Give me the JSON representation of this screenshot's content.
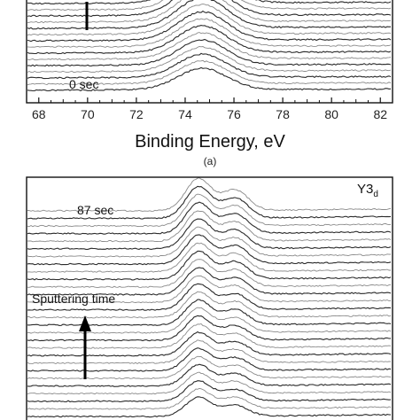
{
  "chart_data": [
    {
      "type": "line",
      "panel_label": "(a)",
      "xlabel": "Binding Energy, eV",
      "ylabel": "",
      "xlim": [
        67.5,
        82.5
      ],
      "x_ticks": [
        68,
        70,
        72,
        74,
        76,
        78,
        80,
        82
      ],
      "x_tick_labels": [
        "68",
        "70",
        "72",
        "74",
        "76",
        "78",
        "80",
        "82"
      ],
      "grid": false,
      "series_count": 16,
      "peak_center": 74.7,
      "peak_width": 1.0,
      "bottom_annotation": "0 sec",
      "series": [
        {
          "time_index": 0,
          "peak_height": 1.0
        },
        {
          "time_index": 1,
          "peak_height": 1.04
        },
        {
          "time_index": 2,
          "peak_height": 1.08
        },
        {
          "time_index": 3,
          "peak_height": 1.12
        },
        {
          "time_index": 4,
          "peak_height": 1.16
        },
        {
          "time_index": 5,
          "peak_height": 1.2
        },
        {
          "time_index": 6,
          "peak_height": 1.24
        },
        {
          "time_index": 7,
          "peak_height": 1.28
        },
        {
          "time_index": 8,
          "peak_height": 1.32
        },
        {
          "time_index": 9,
          "peak_height": 1.36
        },
        {
          "time_index": 10,
          "peak_height": 1.4
        },
        {
          "time_index": 11,
          "peak_height": 1.44
        },
        {
          "time_index": 12,
          "peak_height": 1.48
        },
        {
          "time_index": 13,
          "peak_height": 1.52
        },
        {
          "time_index": 14,
          "peak_height": 1.56
        },
        {
          "time_index": 15,
          "peak_height": 1.6
        }
      ]
    },
    {
      "type": "line",
      "panel_label": "",
      "xlabel": "",
      "ylabel": "",
      "series_count": 28,
      "peaks": [
        {
          "position": 0.47,
          "width": 0.035
        },
        {
          "position": 0.57,
          "width": 0.035
        }
      ],
      "top_annotation": "87 sec",
      "label": "Y3",
      "label_subscript": "d",
      "arrow_label": "Sputtering time",
      "series": [
        {
          "time_index": 0,
          "peak1_height": 0.8,
          "peak2_height": 0.45
        },
        {
          "time_index": 1,
          "peak1_height": 0.82,
          "peak2_height": 0.47
        },
        {
          "time_index": 2,
          "peak1_height": 0.84,
          "peak2_height": 0.48
        },
        {
          "time_index": 3,
          "peak1_height": 0.86,
          "peak2_height": 0.5
        },
        {
          "time_index": 4,
          "peak1_height": 0.88,
          "peak2_height": 0.51
        },
        {
          "time_index": 5,
          "peak1_height": 0.9,
          "peak2_height": 0.53
        },
        {
          "time_index": 6,
          "peak1_height": 0.92,
          "peak2_height": 0.54
        },
        {
          "time_index": 7,
          "peak1_height": 0.94,
          "peak2_height": 0.56
        },
        {
          "time_index": 8,
          "peak1_height": 0.96,
          "peak2_height": 0.57
        },
        {
          "time_index": 9,
          "peak1_height": 0.98,
          "peak2_height": 0.59
        },
        {
          "time_index": 10,
          "peak1_height": 1.0,
          "peak2_height": 0.6
        },
        {
          "time_index": 11,
          "peak1_height": 1.02,
          "peak2_height": 0.62
        },
        {
          "time_index": 12,
          "peak1_height": 1.04,
          "peak2_height": 0.63
        },
        {
          "time_index": 13,
          "peak1_height": 1.06,
          "peak2_height": 0.65
        },
        {
          "time_index": 14,
          "peak1_height": 1.08,
          "peak2_height": 0.66
        },
        {
          "time_index": 15,
          "peak1_height": 1.1,
          "peak2_height": 0.68
        },
        {
          "time_index": 16,
          "peak1_height": 1.12,
          "peak2_height": 0.69
        },
        {
          "time_index": 17,
          "peak1_height": 1.14,
          "peak2_height": 0.71
        },
        {
          "time_index": 18,
          "peak1_height": 1.16,
          "peak2_height": 0.72
        },
        {
          "time_index": 19,
          "peak1_height": 1.18,
          "peak2_height": 0.74
        },
        {
          "time_index": 20,
          "peak1_height": 1.2,
          "peak2_height": 0.75
        },
        {
          "time_index": 21,
          "peak1_height": 1.22,
          "peak2_height": 0.77
        },
        {
          "time_index": 22,
          "peak1_height": 1.24,
          "peak2_height": 0.78
        },
        {
          "time_index": 23,
          "peak1_height": 1.26,
          "peak2_height": 0.8
        },
        {
          "time_index": 24,
          "peak1_height": 1.28,
          "peak2_height": 0.81
        },
        {
          "time_index": 25,
          "peak1_height": 1.3,
          "peak2_height": 0.83
        },
        {
          "time_index": 26,
          "peak1_height": 1.32,
          "peak2_height": 0.84
        },
        {
          "time_index": 27,
          "peak1_height": 1.34,
          "peak2_height": 0.86
        }
      ]
    }
  ],
  "colors": {
    "axis": "#111111",
    "curve_dark": "#2b2b2b",
    "curve_light": "#8a8a8a"
  }
}
